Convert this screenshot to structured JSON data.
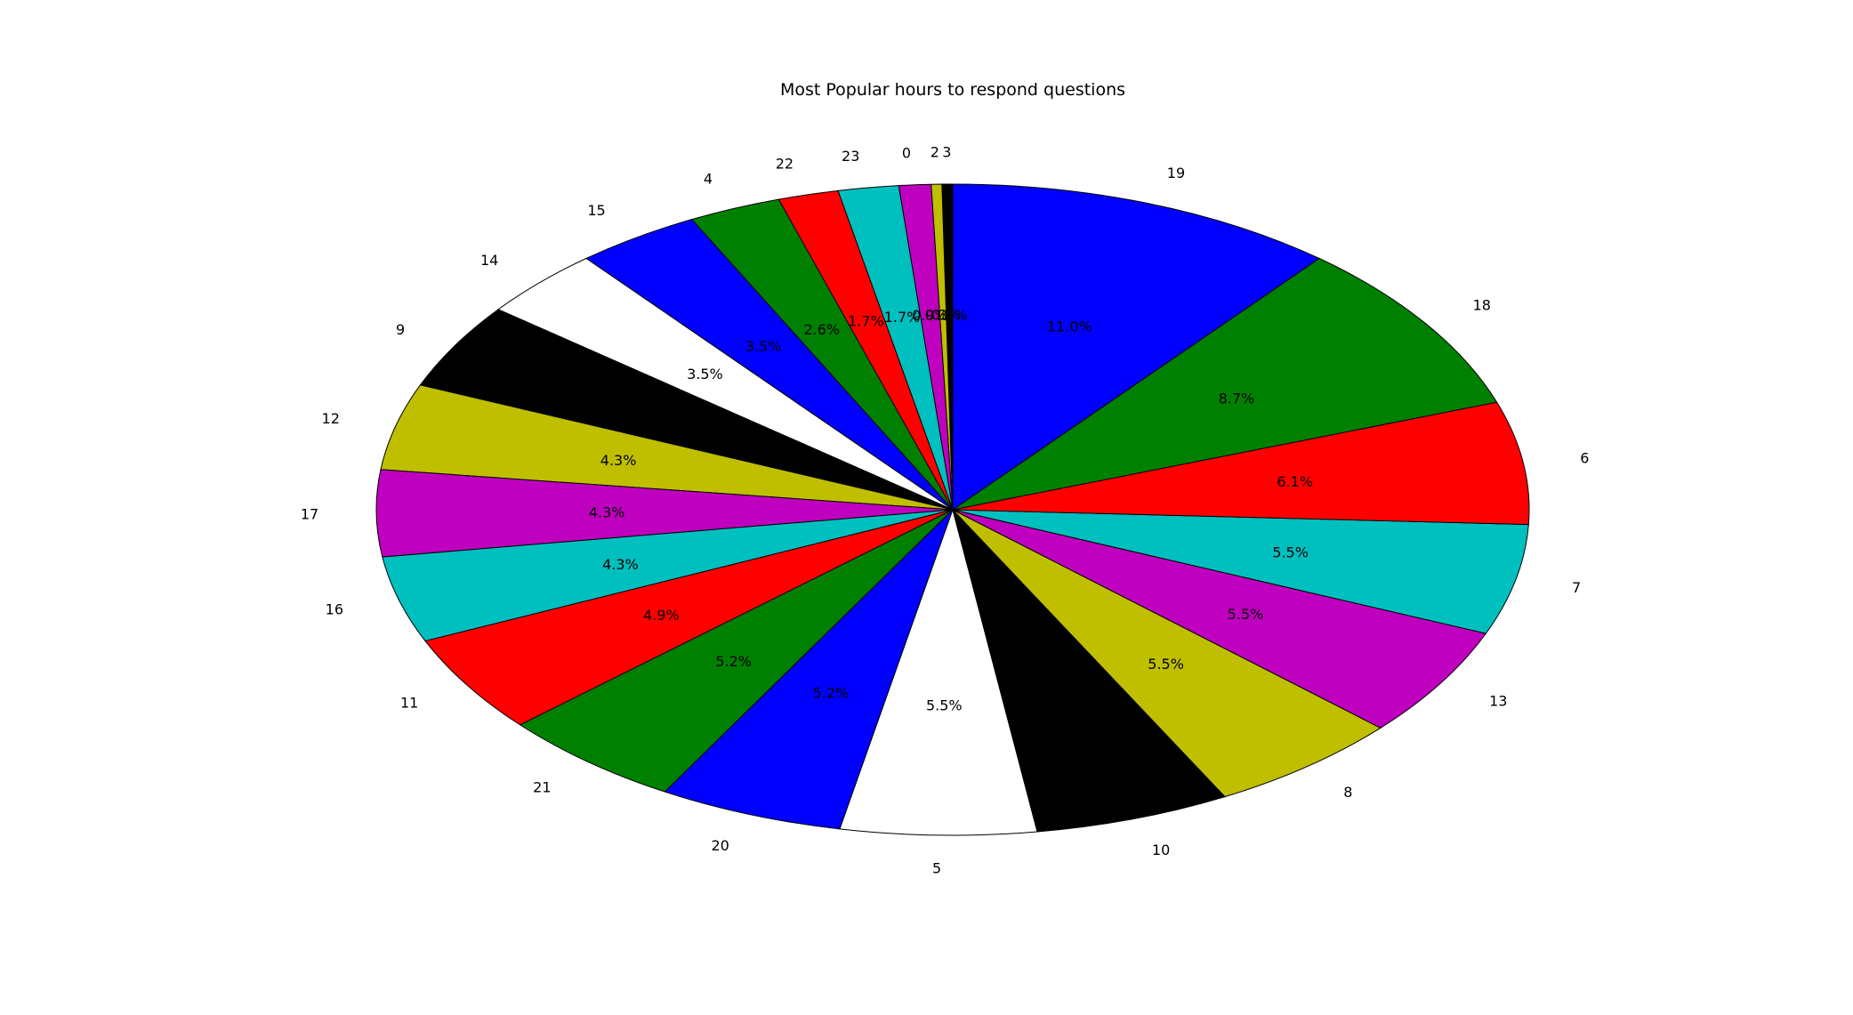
{
  "chart_data": {
    "type": "pie",
    "title": "Most Popular hours to respond questions",
    "start_angle_deg": 90,
    "direction": "counterclockwise",
    "colors": [
      "#0000ff",
      "#008000",
      "#ff0000",
      "#00bfbf",
      "#bf00bf",
      "#bfbf00",
      "#000000",
      "#ffffff"
    ],
    "slices": [
      {
        "label": "3",
        "value": 0.3,
        "pct_label": "0.3%",
        "color": "#000000"
      },
      {
        "label": "2",
        "value": 0.3,
        "pct_label": "0.3%",
        "color": "#bfbf00"
      },
      {
        "label": "0",
        "value": 0.9,
        "pct_label": "0.9%",
        "color": "#bf00bf"
      },
      {
        "label": "23",
        "value": 1.7,
        "pct_label": "1.7%",
        "color": "#00bfbf"
      },
      {
        "label": "22",
        "value": 1.7,
        "pct_label": "1.7%",
        "color": "#ff0000"
      },
      {
        "label": "4",
        "value": 2.6,
        "pct_label": "2.6%",
        "color": "#008000"
      },
      {
        "label": "15",
        "value": 3.5,
        "pct_label": "3.5%",
        "color": "#0000ff"
      },
      {
        "label": "14",
        "value": 3.5,
        "pct_label": "3.5%",
        "color": "#ffffff"
      },
      {
        "label": "9",
        "value": 4.3,
        "pct_label": "4.3%",
        "color": "#000000"
      },
      {
        "label": "12",
        "value": 4.3,
        "pct_label": "4.3%",
        "color": "#bfbf00"
      },
      {
        "label": "17",
        "value": 4.3,
        "pct_label": "4.3%",
        "color": "#bf00bf"
      },
      {
        "label": "16",
        "value": 4.3,
        "pct_label": "4.3%",
        "color": "#00bfbf"
      },
      {
        "label": "11",
        "value": 4.9,
        "pct_label": "4.9%",
        "color": "#ff0000"
      },
      {
        "label": "21",
        "value": 5.2,
        "pct_label": "5.2%",
        "color": "#008000"
      },
      {
        "label": "20",
        "value": 5.2,
        "pct_label": "5.2%",
        "color": "#0000ff"
      },
      {
        "label": "5",
        "value": 5.5,
        "pct_label": "5.5%",
        "color": "#ffffff"
      },
      {
        "label": "10",
        "value": 5.5,
        "pct_label": "5.5%",
        "color": "#000000"
      },
      {
        "label": "8",
        "value": 5.5,
        "pct_label": "5.5%",
        "color": "#bfbf00"
      },
      {
        "label": "13",
        "value": 5.5,
        "pct_label": "5.5%",
        "color": "#bf00bf"
      },
      {
        "label": "7",
        "value": 5.5,
        "pct_label": "5.5%",
        "color": "#00bfbf"
      },
      {
        "label": "6",
        "value": 6.1,
        "pct_label": "6.1%",
        "color": "#ff0000"
      },
      {
        "label": "18",
        "value": 8.7,
        "pct_label": "8.7%",
        "color": "#008000"
      },
      {
        "label": "19",
        "value": 11.0,
        "pct_label": "11.0%",
        "color": "#0000ff"
      }
    ]
  }
}
